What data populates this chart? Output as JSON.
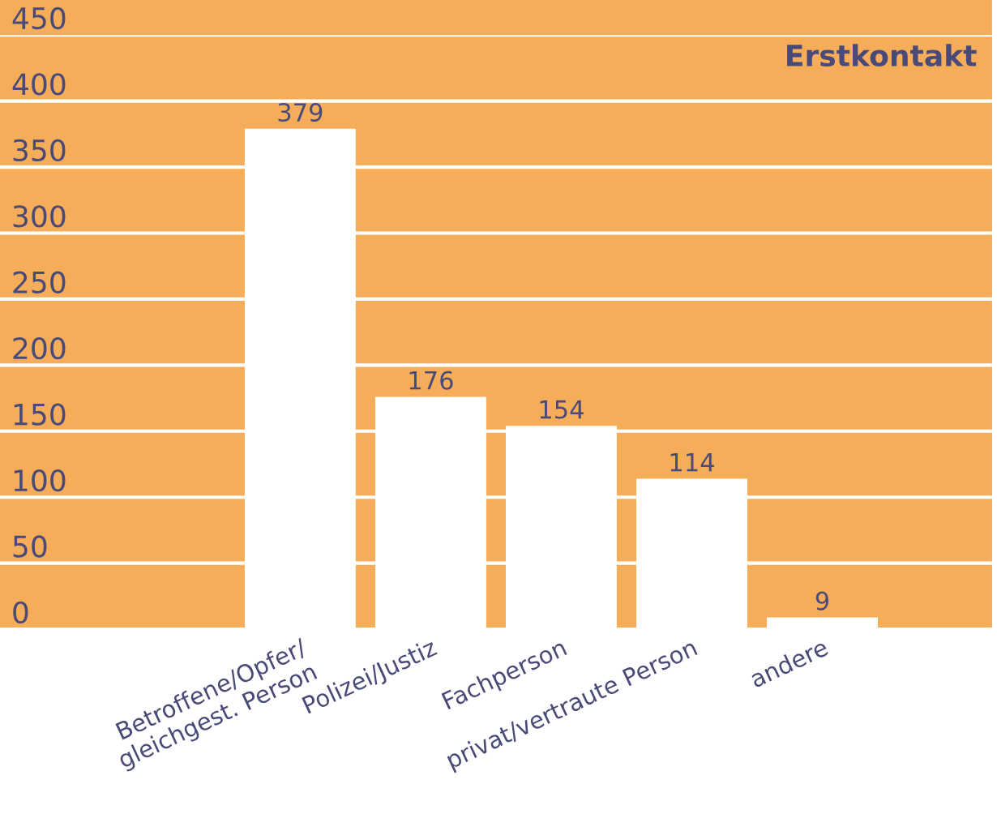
{
  "chart_data": {
    "type": "bar",
    "title": "Erstkontakt",
    "categories": [
      "Betroffene/Opfer/\ngleichgest. Person",
      "Polizei/Justiz",
      "Fachperson",
      "privat/vertraute Person",
      "andere"
    ],
    "values": [
      379,
      176,
      154,
      114,
      9
    ],
    "color": "#ffffff",
    "ylim": [
      0,
      450
    ],
    "yticks": [
      0,
      50,
      100,
      150,
      200,
      250,
      300,
      350,
      400,
      450
    ],
    "grid": "y",
    "data_labels": true
  }
}
